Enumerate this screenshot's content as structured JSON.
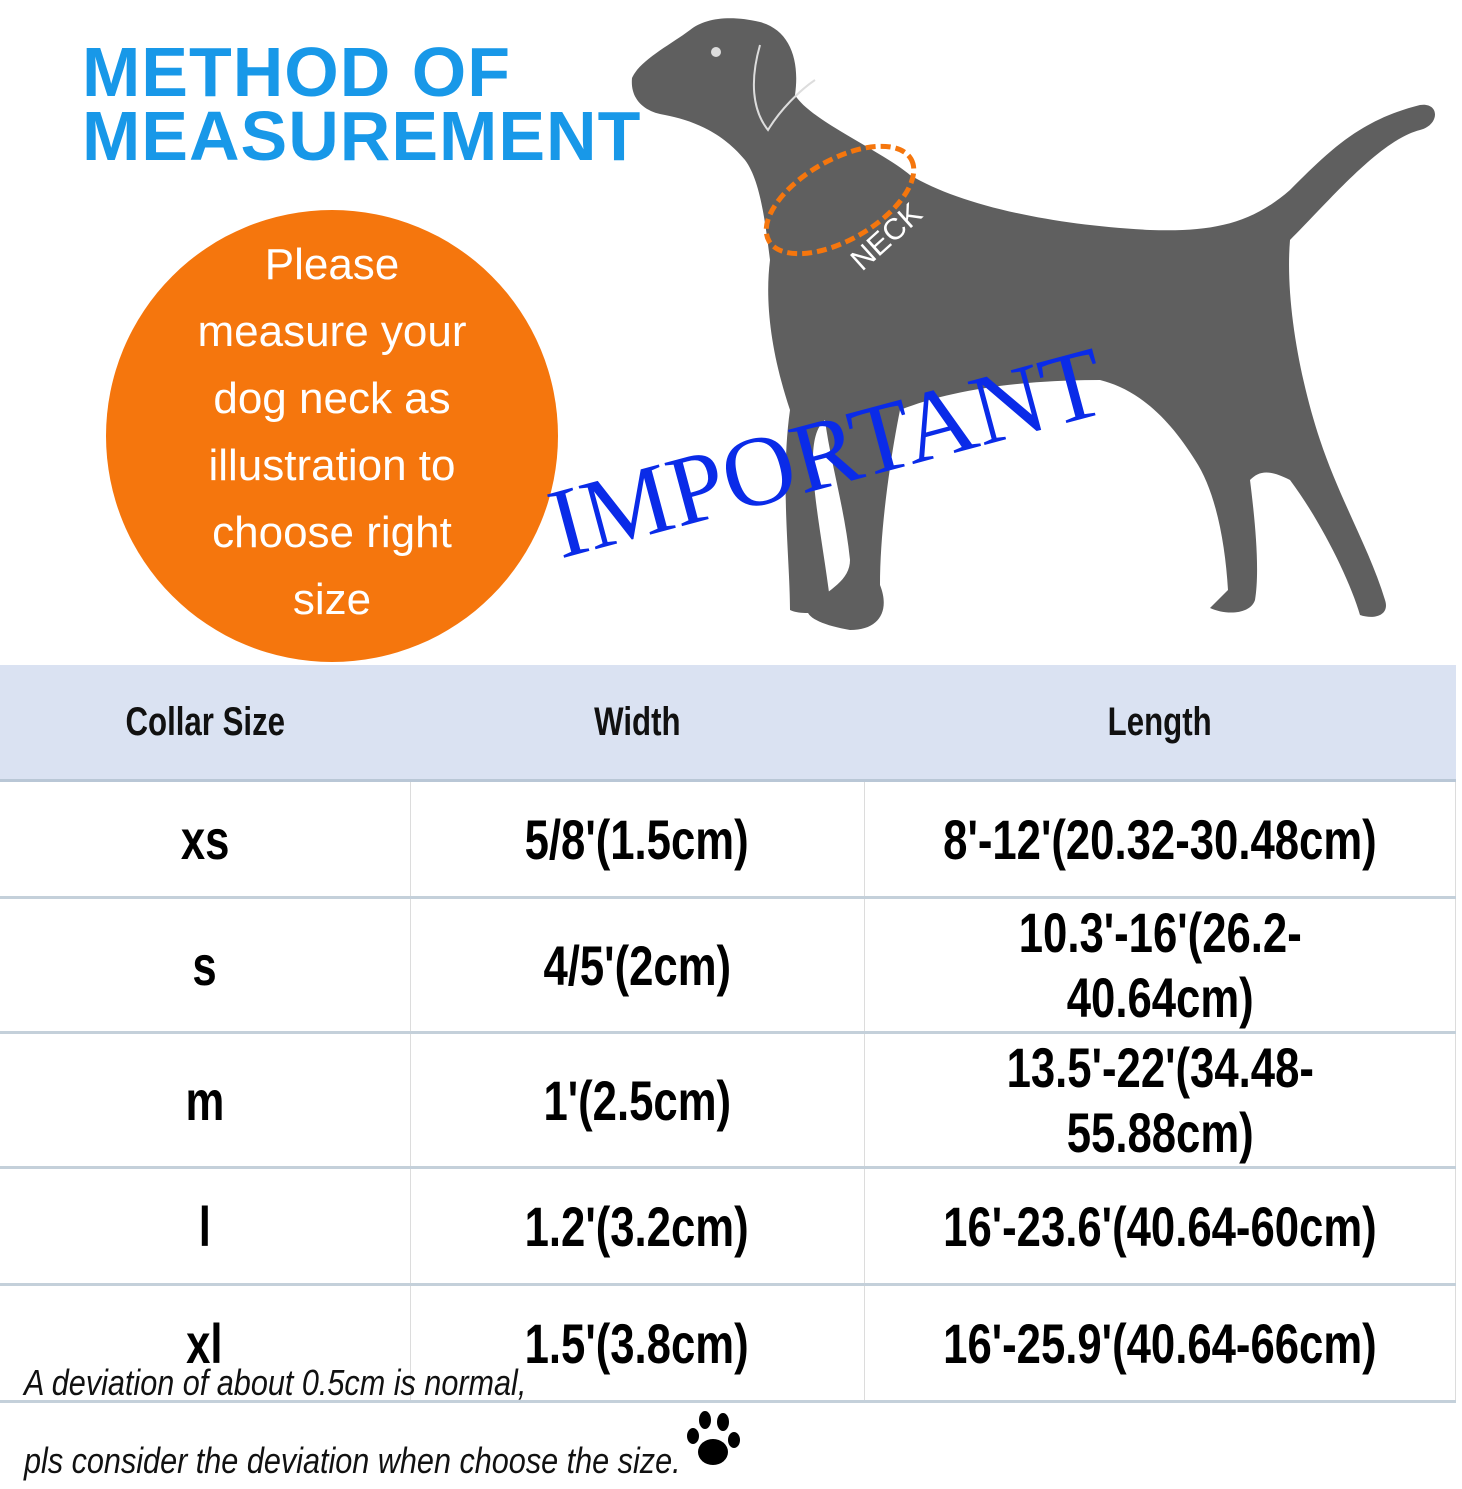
{
  "title": {
    "line1": "METHOD OF",
    "line2": "MEASUREMENT"
  },
  "illustration": {
    "neck_label": "NECK",
    "stamp": "IMPORTANT"
  },
  "callout": {
    "text": "Please\nmeasure your\ndog neck as\nillustration to\nchoose right\nsize"
  },
  "table": {
    "headers": [
      "Collar Size",
      "Width",
      "Length"
    ],
    "rows": [
      [
        "xs",
        "5/8'(1.5cm)",
        "8'-12'(20.32-30.48cm)"
      ],
      [
        "s",
        "4/5'(2cm)",
        "10.3'-16'(26.2-40.64cm)"
      ],
      [
        "m",
        "1'(2.5cm)",
        "13.5'-22'(34.48-55.88cm)"
      ],
      [
        "l",
        "1.2'(3.2cm)",
        "16'-23.6'(40.64-60cm)"
      ],
      [
        "xl",
        "1.5'(3.8cm)",
        "16'-25.9'(40.64-66cm)"
      ]
    ]
  },
  "notes": {
    "line1": "A deviation of about 0.5cm is normal,",
    "line2": "pls consider the deviation when choose the size."
  },
  "colors": {
    "title": "#1898e8",
    "callout": "#f5760d",
    "stamp": "#0a2be8",
    "dog": "#5f5f5f",
    "header_bg": "#dae2f2"
  },
  "icons": {
    "paw": "paw-icon"
  }
}
